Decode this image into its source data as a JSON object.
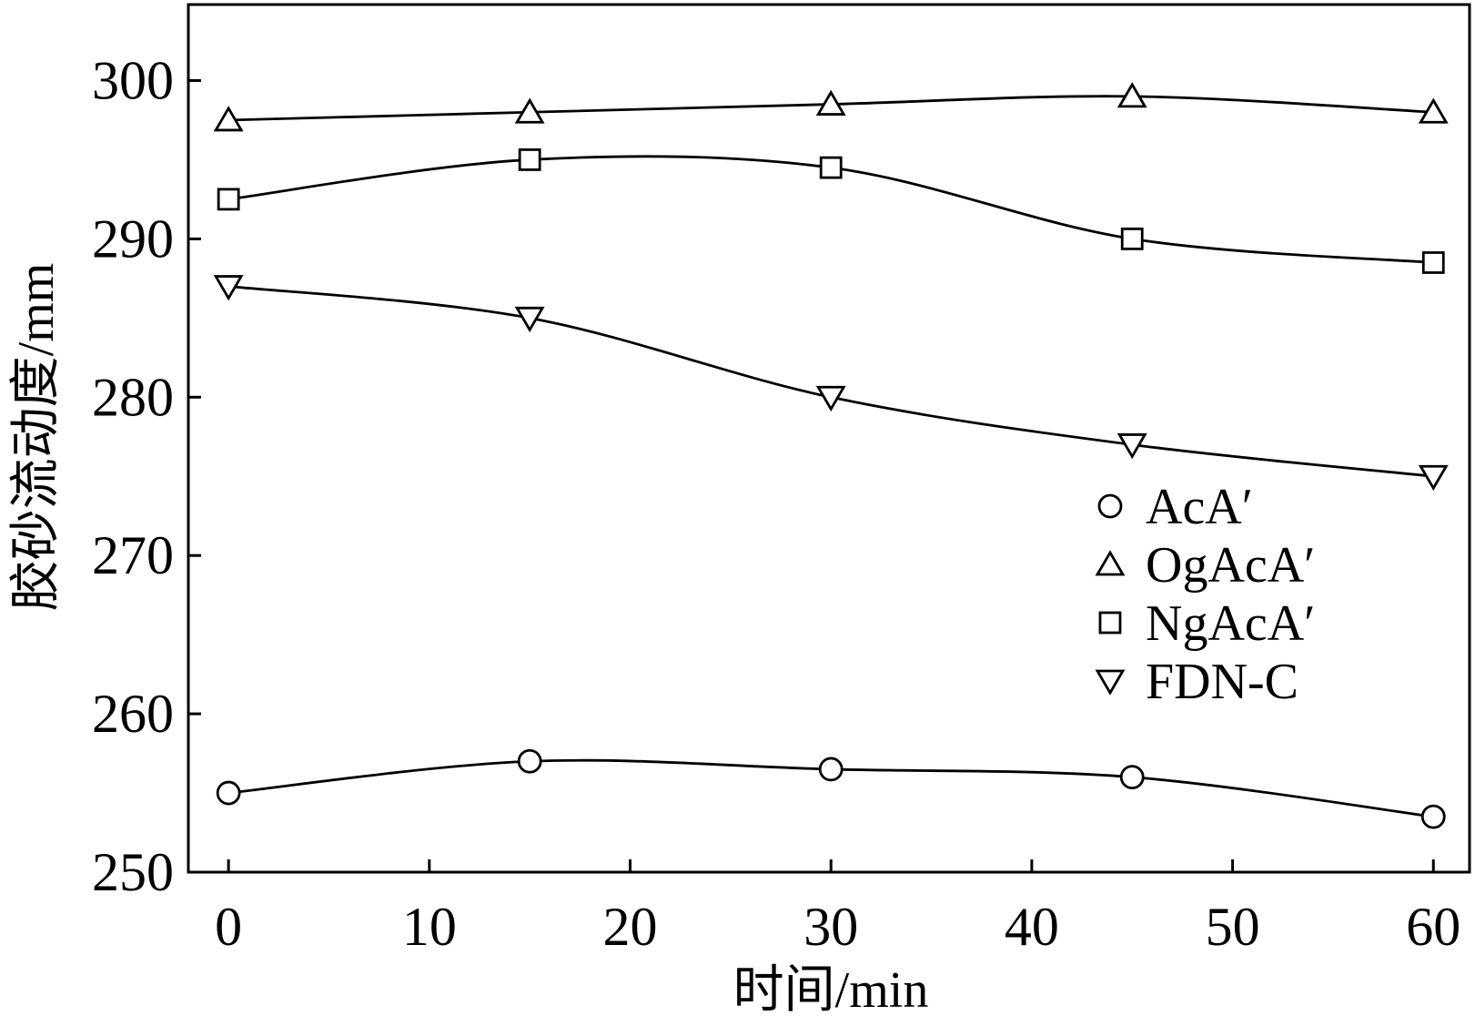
{
  "chart_data": {
    "type": "line",
    "x": [
      0,
      15,
      30,
      45,
      60
    ],
    "series": [
      {
        "name": "AcA′",
        "marker": "circle",
        "values": [
          255,
          257,
          256.5,
          256,
          253.5
        ]
      },
      {
        "name": "OgAcA′",
        "marker": "triangle-up",
        "values": [
          297.5,
          298,
          298.5,
          299,
          298
        ]
      },
      {
        "name": "NgAcA′",
        "marker": "square",
        "values": [
          292.5,
          295,
          294.5,
          290,
          288.5
        ]
      },
      {
        "name": "FDN-C",
        "marker": "triangle-down",
        "values": [
          287,
          285,
          280,
          277,
          275
        ]
      }
    ],
    "xlabel": "时间/min",
    "ylabel": "胶砂流动度/mm",
    "xlim": [
      -2,
      61.8
    ],
    "ylim": [
      250,
      304.8
    ],
    "xticks": [
      0,
      10,
      20,
      30,
      40,
      50,
      60
    ],
    "yticks": [
      250,
      260,
      270,
      280,
      290,
      300
    ],
    "curve": "smooth",
    "legend": "center-right",
    "grid": false,
    "line_color": "#000000",
    "marker_fill": "#ffffff"
  }
}
